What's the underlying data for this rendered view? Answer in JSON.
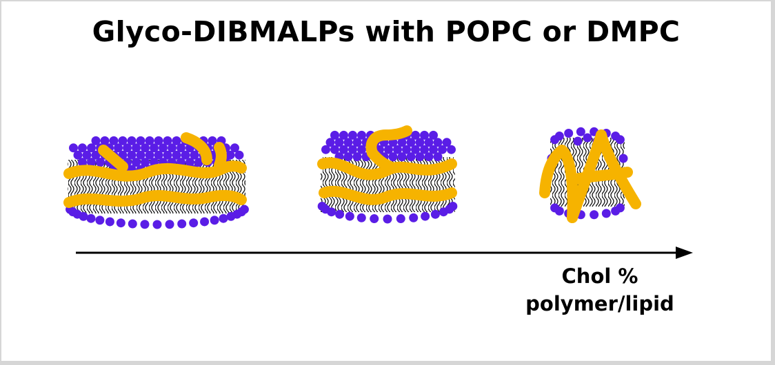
{
  "title": "Glyco-DIBMALPs with POPC or DMPC",
  "arrow_labels": [
    "Chol %",
    "polymer/lipid"
  ],
  "colors": {
    "lipid_head": "#5a1de6",
    "polymer": "#f6b300",
    "lipid_tail": "#111111",
    "arrow": "#000000"
  },
  "particles": [
    {
      "name": "large-nanodisc"
    },
    {
      "name": "medium-nanodisc"
    },
    {
      "name": "small-nanodisc"
    }
  ]
}
